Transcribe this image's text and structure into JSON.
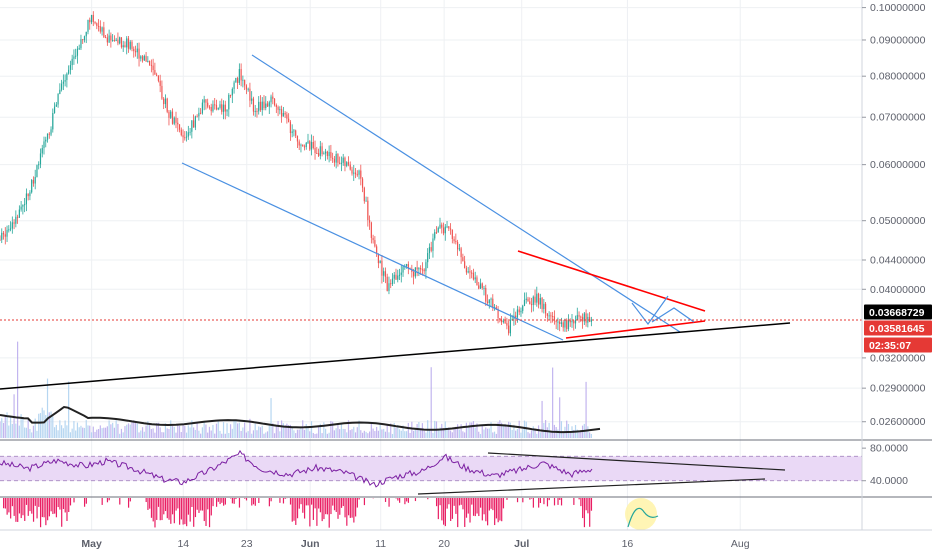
{
  "chart_data": {
    "type": "candlestick",
    "title": "",
    "xlabel": "",
    "ylabel": "",
    "y_scale": "log",
    "ylim": [
      0.0245,
      0.1025
    ],
    "price_ticks": [
      "0.10000000",
      "0.09000000",
      "0.08000000",
      "0.07000000",
      "0.06000000",
      "0.05000000",
      "0.04400000",
      "0.04000000",
      "0.03200000",
      "0.02900000",
      "0.02600000"
    ],
    "x_ticks": [
      {
        "label": "May",
        "date": "2018-05-01"
      },
      {
        "label": "14",
        "date": "2018-05-14"
      },
      {
        "label": "23",
        "date": "2018-05-23"
      },
      {
        "label": "Jun",
        "date": "2018-06-01"
      },
      {
        "label": "11",
        "date": "2018-06-11"
      },
      {
        "label": "20",
        "date": "2018-06-20"
      },
      {
        "label": "Jul",
        "date": "2018-07-01"
      },
      {
        "label": "16",
        "date": "2018-07-16"
      },
      {
        "label": "Aug",
        "date": "2018-08-01"
      }
    ],
    "price_path": [
      [
        "2018-04-18",
        0.047
      ],
      [
        "2018-04-21",
        0.052
      ],
      [
        "2018-04-23",
        0.058
      ],
      [
        "2018-04-25",
        0.067
      ],
      [
        "2018-04-27",
        0.079
      ],
      [
        "2018-04-29",
        0.088
      ],
      [
        "2018-05-01",
        0.097
      ],
      [
        "2018-05-03",
        0.091
      ],
      [
        "2018-05-06",
        0.089
      ],
      [
        "2018-05-09",
        0.084
      ],
      [
        "2018-05-12",
        0.071
      ],
      [
        "2018-05-14",
        0.065
      ],
      [
        "2018-05-17",
        0.073
      ],
      [
        "2018-05-20",
        0.072
      ],
      [
        "2018-05-22",
        0.081
      ],
      [
        "2018-05-24",
        0.072
      ],
      [
        "2018-05-27",
        0.074
      ],
      [
        "2018-05-30",
        0.065
      ],
      [
        "2018-06-02",
        0.063
      ],
      [
        "2018-06-05",
        0.061
      ],
      [
        "2018-06-08",
        0.058
      ],
      [
        "2018-06-10",
        0.046
      ],
      [
        "2018-06-12",
        0.04
      ],
      [
        "2018-06-14",
        0.043
      ],
      [
        "2018-06-17",
        0.042
      ],
      [
        "2018-06-19",
        0.049
      ],
      [
        "2018-06-21",
        0.048
      ],
      [
        "2018-06-23",
        0.043
      ],
      [
        "2018-06-26",
        0.039
      ],
      [
        "2018-06-29",
        0.035
      ],
      [
        "2018-07-01",
        0.038
      ],
      [
        "2018-07-03",
        0.039
      ],
      [
        "2018-07-05",
        0.037
      ],
      [
        "2018-07-07",
        0.0355
      ],
      [
        "2018-07-09",
        0.0368
      ],
      [
        "2018-07-11",
        0.0358
      ]
    ],
    "current_price": "0.03668729",
    "price_level": "0.03581645",
    "countdown": "02:35:07",
    "oscillator_ticks": [
      "80.0000",
      "40.0000"
    ],
    "oscillator_range": [
      20,
      90
    ],
    "oscillator_band": [
      40,
      70
    ],
    "oscillator_path": [
      [
        "2018-04-18",
        62
      ],
      [
        "2018-04-22",
        55
      ],
      [
        "2018-04-26",
        65
      ],
      [
        "2018-04-30",
        58
      ],
      [
        "2018-05-03",
        64
      ],
      [
        "2018-05-07",
        55
      ],
      [
        "2018-05-11",
        42
      ],
      [
        "2018-05-14",
        38
      ],
      [
        "2018-05-18",
        54
      ],
      [
        "2018-05-22",
        73
      ],
      [
        "2018-05-25",
        55
      ],
      [
        "2018-05-29",
        48
      ],
      [
        "2018-06-02",
        56
      ],
      [
        "2018-06-06",
        50
      ],
      [
        "2018-06-10",
        35
      ],
      [
        "2018-06-13",
        45
      ],
      [
        "2018-06-17",
        52
      ],
      [
        "2018-06-20",
        70
      ],
      [
        "2018-06-23",
        56
      ],
      [
        "2018-06-27",
        46
      ],
      [
        "2018-07-01",
        54
      ],
      [
        "2018-07-04",
        62
      ],
      [
        "2018-07-08",
        48
      ],
      [
        "2018-07-11",
        55
      ]
    ]
  },
  "colors": {
    "up": "#26a69a",
    "down": "#ef5350",
    "channel": "#4a90e2",
    "triangle": "#ff0000",
    "support": "#000000",
    "current_tag": "#000000",
    "level_tag": "#e53935",
    "osc_line": "#7b1fa2",
    "osc_band": "#ead9f6",
    "histogram": "#e91e63"
  }
}
